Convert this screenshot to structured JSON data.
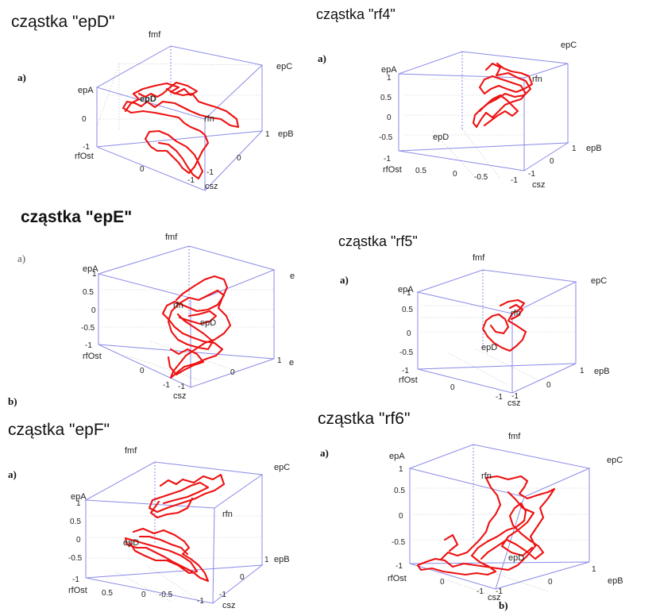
{
  "chart_data": [
    {
      "type": "line",
      "title": "cząstka \"epD\"",
      "subplot_label": "a)",
      "node_labels": {
        "fmf": "fmf",
        "epC": "epC",
        "epA": "epA",
        "rfn": "rfn",
        "epB": "epB",
        "rfost": "rfOst",
        "csz": "csz",
        "inner": "epD"
      },
      "z_ticks": [
        "-1",
        "0"
      ],
      "x_ticks": [
        "0",
        "-1"
      ],
      "y_ticks": [
        "-1",
        "0",
        "1"
      ],
      "style": {
        "trajectory_color": "#ee1111",
        "box_color": "#8a8ae8"
      }
    },
    {
      "type": "line",
      "title": "cząstka \"rf4\"",
      "subplot_label": "a)",
      "node_labels": {
        "epC": "epC",
        "epA": "epA",
        "rfn": "rfn",
        "epD": "epD",
        "epB": "epB",
        "rfost": "rfOst",
        "csz": "csz"
      },
      "z_ticks": [
        "1",
        "0.5",
        "0",
        "-0.5",
        "-1"
      ],
      "x_ticks": [
        "0.5",
        "0",
        "-0.5",
        "-1"
      ],
      "y_ticks": [
        "-1",
        "0",
        "1"
      ],
      "style": {
        "trajectory_color": "#ee1111",
        "box_color": "#8a8ae8"
      }
    },
    {
      "type": "line",
      "title": "cząstka \"epE\"",
      "subplot_label": "a)",
      "subplot_label_b": "b)",
      "node_labels": {
        "fmf": "fmf",
        "epA": "epA",
        "rfn": "rfn",
        "inner": "epD",
        "rfost": "rfOst",
        "csz": "csz",
        "right_top": "e",
        "right_bottom": "e"
      },
      "z_ticks": [
        "1",
        "0.5",
        "0",
        "-0.5",
        "-1"
      ],
      "x_ticks": [
        "0",
        "-1"
      ],
      "y_ticks": [
        "-1",
        "0",
        "1"
      ],
      "style": {
        "trajectory_color": "#ee1111",
        "box_color": "#8a8ae8"
      }
    },
    {
      "type": "line",
      "title": "cząstka \"rf5\"",
      "subplot_label": "a)",
      "node_labels": {
        "fmf": "fmf",
        "epC": "epC",
        "epA": "epA",
        "rfn": "rfn",
        "epD": "epD",
        "epB": "epB",
        "rfost": "rfOst",
        "csz": "csz"
      },
      "z_ticks": [
        "1",
        "0.5",
        "0",
        "-0.5",
        "-1"
      ],
      "x_ticks": [
        "0",
        "-1"
      ],
      "y_ticks": [
        "-1",
        "0",
        "1"
      ],
      "style": {
        "trajectory_color": "#ee1111",
        "box_color": "#8a8ae8"
      }
    },
    {
      "type": "line",
      "title": "cząstka \"epF\"",
      "subplot_label": "a)",
      "node_labels": {
        "fmf": "fmf",
        "epC": "epC",
        "epA": "epA",
        "rfn": "rfn",
        "epD": "epD",
        "epB": "epB",
        "rfost": "rfOst",
        "csz": "csz"
      },
      "z_ticks": [
        "1",
        "0.5",
        "0",
        "-0.5",
        "-1"
      ],
      "x_ticks": [
        "0.5",
        "0",
        "-0.5",
        "-1"
      ],
      "y_ticks": [
        "-1",
        "0",
        "1"
      ],
      "style": {
        "trajectory_color": "#ee1111",
        "box_color": "#8a8ae8"
      }
    },
    {
      "type": "line",
      "title": "cząstka \"rf6\"",
      "subplot_label": "a)",
      "subplot_label_b": "b)",
      "node_labels": {
        "fmf": "fmf",
        "epC": "epC",
        "epA": "epA",
        "rfn": "rfn",
        "epD": "epD",
        "epB": "epB",
        "rfost": "rfOst",
        "csz": "csz"
      },
      "z_ticks": [
        "1",
        "0.5",
        "0",
        "-0.5",
        "-1"
      ],
      "x_ticks": [
        "0",
        "-1"
      ],
      "y_ticks": [
        "-1",
        "0",
        "1"
      ],
      "style": {
        "trajectory_color": "#ee1111",
        "box_color": "#8a8ae8"
      }
    }
  ]
}
